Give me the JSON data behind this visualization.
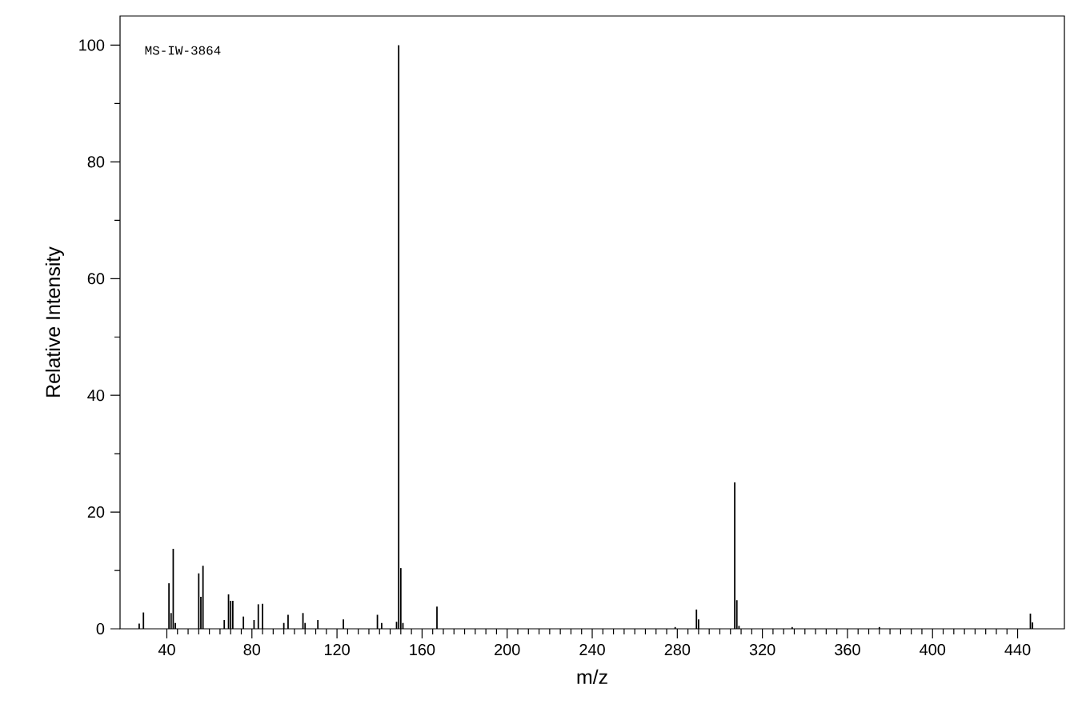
{
  "chart_data": {
    "type": "bar",
    "xlabel": "m/z",
    "ylabel": "Relative Intensity",
    "annotations": [
      "MS-IW-3864"
    ],
    "color": "#000000",
    "x": [
      27,
      29,
      41,
      42,
      43,
      44,
      55,
      56,
      57,
      67,
      69,
      70,
      71,
      76,
      81,
      83,
      85,
      95,
      97,
      104,
      105,
      111,
      123,
      139,
      141,
      148,
      149,
      150,
      151,
      167,
      279,
      289,
      290,
      307,
      308,
      309,
      334,
      375,
      446,
      447
    ],
    "values": [
      0.9,
      2.8,
      7.8,
      2.7,
      13.7,
      1.0,
      9.5,
      5.5,
      10.8,
      1.5,
      5.9,
      4.8,
      4.8,
      2.1,
      1.5,
      4.2,
      4.3,
      1.0,
      2.4,
      2.7,
      1.0,
      1.5,
      1.6,
      2.4,
      1.0,
      1.2,
      100,
      10.4,
      1.0,
      3.8,
      0.3,
      3.3,
      1.6,
      25.1,
      4.9,
      0.5,
      0.3,
      0.3,
      2.6,
      1.1
    ],
    "xlim": [
      18,
      462
    ],
    "ylim": [
      0,
      105
    ],
    "xticks": [
      40,
      80,
      120,
      160,
      200,
      240,
      280,
      320,
      360,
      400,
      440
    ],
    "yticks": [
      0,
      20,
      40,
      60,
      80,
      100
    ]
  }
}
